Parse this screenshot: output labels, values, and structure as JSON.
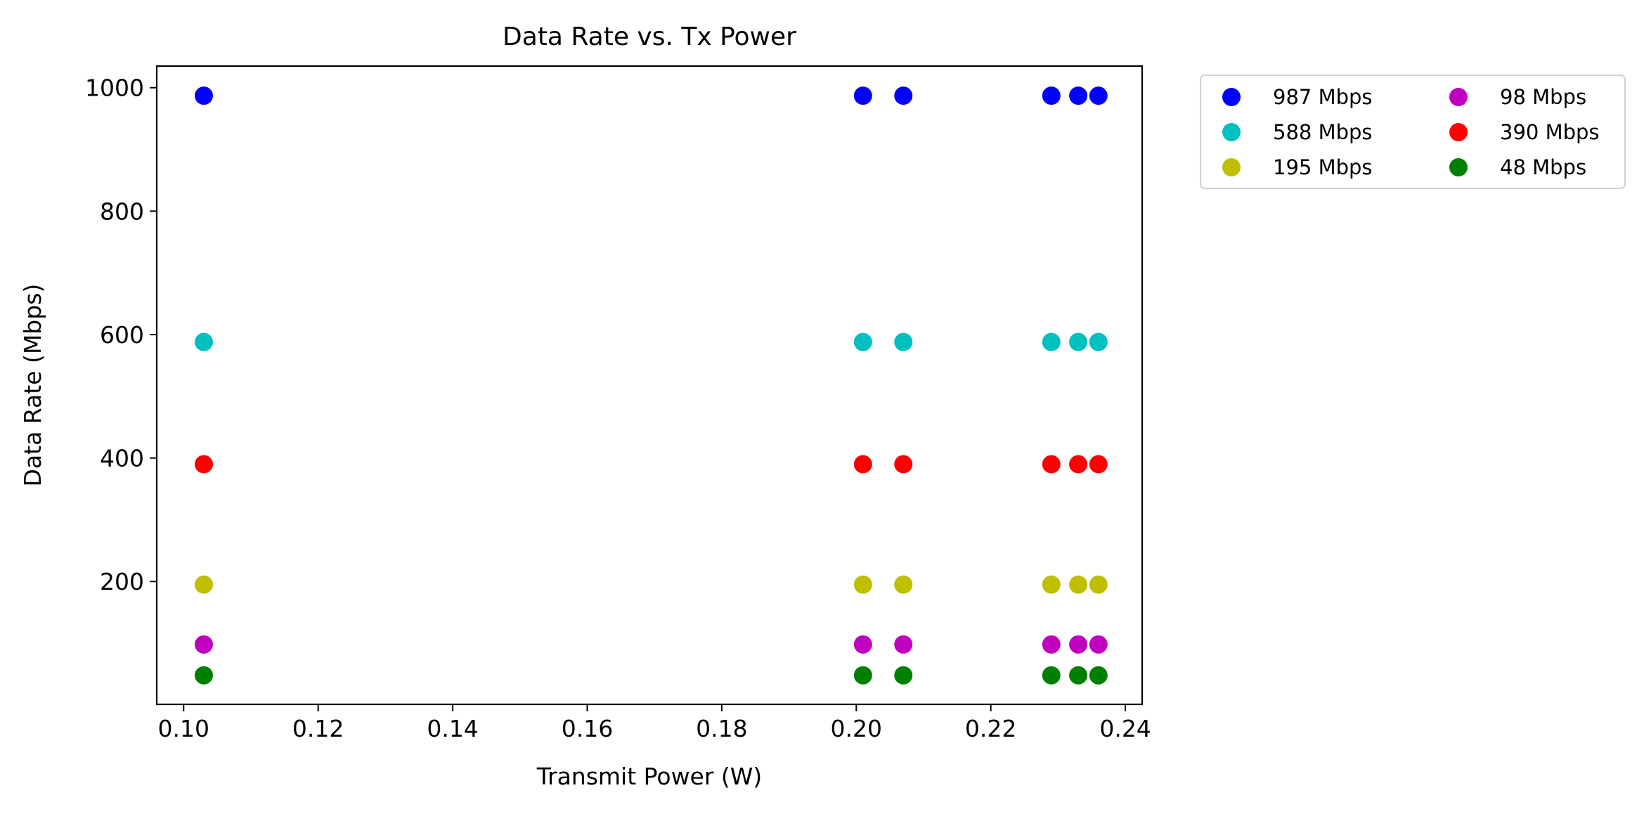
{
  "chart_data": {
    "type": "scatter",
    "title": "Data Rate vs. Tx Power",
    "xlabel": "Transmit Power (W)",
    "ylabel": "Data Rate (Mbps)",
    "xlim": [
      0.096,
      0.2425
    ],
    "ylim": [
      1,
      1035
    ],
    "xticks": [
      0.1,
      0.12,
      0.14,
      0.16,
      0.18,
      0.2,
      0.22,
      0.24
    ],
    "xtick_labels": [
      "0.10",
      "0.12",
      "0.14",
      "0.16",
      "0.18",
      "0.20",
      "0.22",
      "0.24"
    ],
    "yticks": [
      200,
      400,
      600,
      800,
      1000
    ],
    "ytick_labels": [
      "200",
      "400",
      "600",
      "800",
      "1000"
    ],
    "grid": false,
    "legend_position": "outside-top-right",
    "legend_columns": 2,
    "x": [
      0.103,
      0.201,
      0.207,
      0.229,
      0.233,
      0.236
    ],
    "series": [
      {
        "name": "987 Mbps",
        "color": "#0000ff",
        "values": [
          987,
          987,
          987,
          987,
          987,
          987
        ]
      },
      {
        "name": "588 Mbps",
        "color": "#00bfbf",
        "values": [
          588,
          588,
          588,
          588,
          588,
          588
        ]
      },
      {
        "name": "195 Mbps",
        "color": "#bfbf00",
        "values": [
          195,
          195,
          195,
          195,
          195,
          195
        ]
      },
      {
        "name": "98 Mbps",
        "color": "#bf00bf",
        "values": [
          98,
          98,
          98,
          98,
          98,
          98
        ]
      },
      {
        "name": "390 Mbps",
        "color": "#ff0000",
        "values": [
          390,
          390,
          390,
          390,
          390,
          390
        ]
      },
      {
        "name": "48 Mbps",
        "color": "#008000",
        "values": [
          48,
          48,
          48,
          48,
          48,
          48
        ]
      }
    ]
  }
}
